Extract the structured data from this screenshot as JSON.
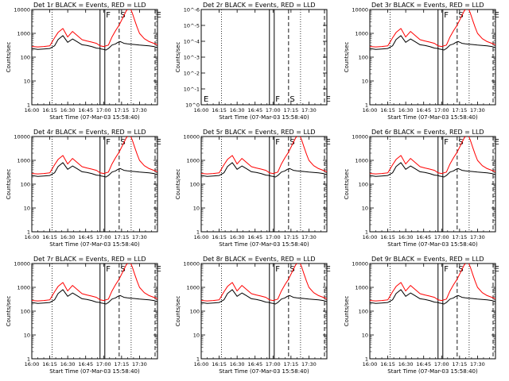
{
  "chart_data": {
    "type": "line",
    "grid": false,
    "legend": "none",
    "x_ticks": [
      "16:00",
      "16:15",
      "16:30",
      "16:45",
      "17:00",
      "17:15",
      "17:30"
    ],
    "x_range_minutes": [
      0,
      105
    ],
    "y_scale": "log",
    "y_ticks_normal": [
      "1",
      "10",
      "100",
      "1000",
      "10000"
    ],
    "y_ticks_empty": [
      "10^0",
      "10^-1",
      "10^-2",
      "10^-3",
      "10^-4",
      "10^-5",
      "10^-6"
    ],
    "ylim_normal": [
      1,
      10000
    ],
    "xlabel": "Start Time (07-Mar-03 15:58:40)",
    "ylabel": "Counts/sec",
    "vertical_markers": {
      "dotted_minutes": [
        17,
        83
      ],
      "solid_minutes": [
        57,
        61
      ],
      "dashed_minutes": [
        73,
        103
      ],
      "letters": [
        "F",
        "S",
        "E"
      ]
    },
    "series": [
      {
        "color": "#000000",
        "x": [
          0,
          5,
          10,
          15,
          19,
          22,
          26,
          30,
          34,
          38,
          42,
          46,
          50,
          54,
          57,
          58,
          60,
          62,
          64,
          67,
          70,
          72,
          74,
          77,
          80,
          83,
          86,
          90,
          94,
          98,
          102,
          105
        ],
        "values": [
          230,
          210,
          220,
          230,
          300,
          550,
          800,
          420,
          580,
          440,
          330,
          310,
          280,
          240,
          230,
          220,
          210,
          200,
          230,
          320,
          360,
          420,
          450,
          380,
          360,
          350,
          340,
          320,
          310,
          300,
          280,
          250
        ]
      },
      {
        "color": "#ff0000",
        "x": [
          0,
          5,
          10,
          15,
          19,
          22,
          26,
          30,
          34,
          38,
          42,
          46,
          50,
          54,
          57,
          60,
          64,
          67,
          70,
          73,
          76,
          79,
          82,
          84,
          86,
          88,
          90,
          94,
          98,
          102,
          105
        ],
        "values": [
          280,
          270,
          280,
          300,
          650,
          1100,
          1600,
          700,
          1200,
          800,
          540,
          480,
          430,
          380,
          300,
          280,
          320,
          700,
          1300,
          2200,
          4500,
          9000,
          12000,
          7000,
          3500,
          1800,
          1000,
          600,
          450,
          380,
          330
        ]
      }
    ],
    "panels": [
      {
        "title": "Det 1r BLACK = Events, RED = LLD",
        "empty": false
      },
      {
        "title": "Det 2r BLACK = Events, RED = LLD",
        "empty": true
      },
      {
        "title": "Det 3r BLACK = Events, RED = LLD",
        "empty": false
      },
      {
        "title": "Det 4r BLACK = Events, RED = LLD",
        "empty": false
      },
      {
        "title": "Det 5r BLACK = Events, RED = LLD",
        "empty": false
      },
      {
        "title": "Det 6r BLACK = Events, RED = LLD",
        "empty": false
      },
      {
        "title": "Det 7r BLACK = Events, RED = LLD",
        "empty": false
      },
      {
        "title": "Det 8r BLACK = Events, RED = LLD",
        "empty": false
      },
      {
        "title": "Det 9r BLACK = Events, RED = LLD",
        "empty": false
      }
    ]
  }
}
